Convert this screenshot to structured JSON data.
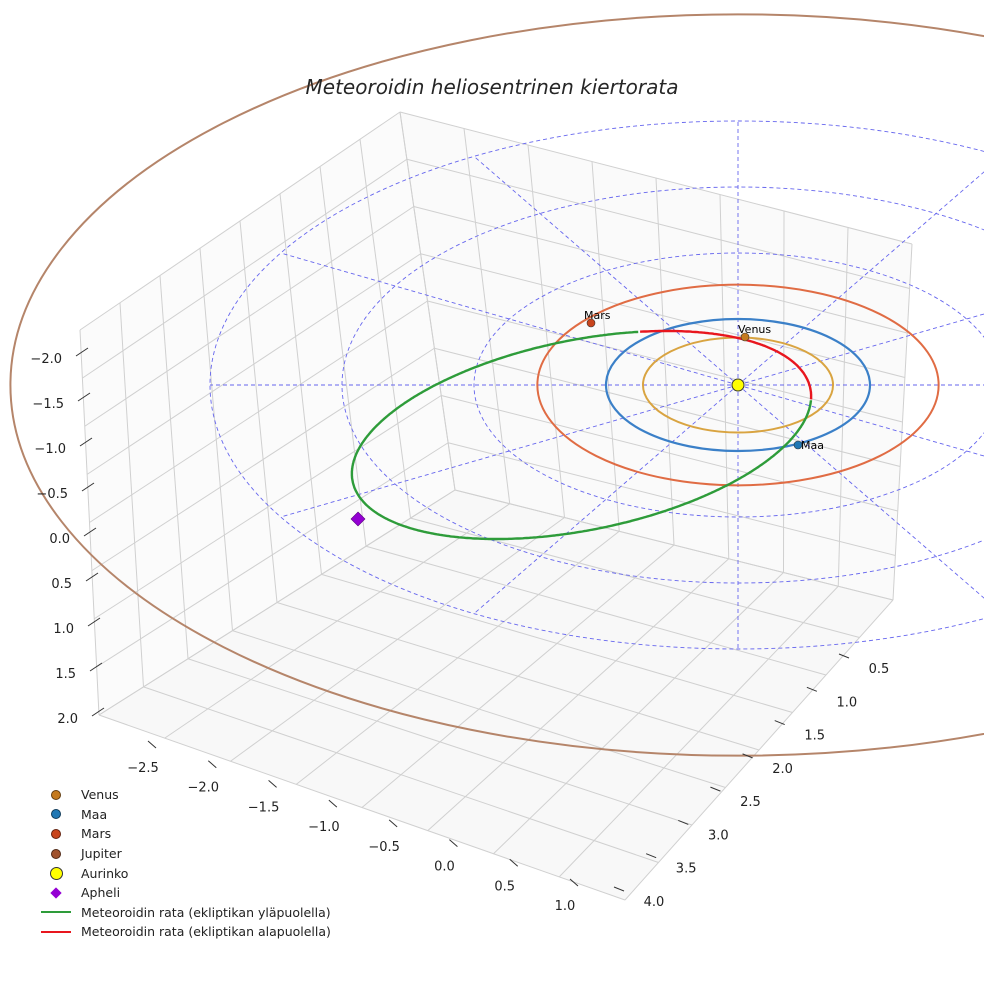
{
  "chart_data": {
    "type": "3d-orbit",
    "title": "Meteoroidin heliosentrinen kiertorata",
    "axes": {
      "x": {
        "range": [
          -2.9,
          1.2
        ],
        "ticks": [
          "−2.5",
          "−2.0",
          "−1.5",
          "−1.0",
          "−0.5",
          "0.0",
          "0.5",
          "1.0"
        ]
      },
      "y": {
        "range": [
          0.2,
          4.2
        ],
        "ticks": [
          "0.5",
          "1.0",
          "1.5",
          "2.0",
          "2.5",
          "3.0",
          "3.5",
          "4.0"
        ]
      },
      "z": {
        "range": [
          -2.2,
          2.2
        ],
        "ticks": [
          "−2.0",
          "−1.5",
          "−1.0",
          "−0.5",
          "0.0",
          "0.5",
          "1.0",
          "1.5",
          "2.0"
        ]
      }
    },
    "planets": [
      {
        "name": "Venus",
        "label": "Venus",
        "radius_au": 0.72,
        "color": "#d9a441",
        "dot_color": "#c57a1e"
      },
      {
        "name": "Maa",
        "label": "Maa",
        "radius_au": 1.0,
        "color": "#3b80c8",
        "dot_color": "#1f77b4"
      },
      {
        "name": "Mars",
        "label": "Mars",
        "radius_au": 1.52,
        "color": "#e06c44",
        "dot_color": "#c8441c"
      },
      {
        "name": "Jupiter",
        "label": "",
        "radius_au": 5.2,
        "color": "#b5856a",
        "dot_color": "#a0522d"
      }
    ],
    "sun": {
      "name": "Aurinko",
      "color": "#ffff00"
    },
    "aphelion": {
      "name": "Apheli",
      "color": "#9400d3"
    },
    "meteoroid_orbit": {
      "above_ecliptic": {
        "label": "Meteoroidin rata (ekliptikan yläpuolella)",
        "color": "#2e9c3a"
      },
      "below_ecliptic": {
        "label": "Meteoroidin rata (ekliptikan alapuolella)",
        "color": "#e8161e"
      }
    }
  },
  "legend": [
    {
      "kind": "dot",
      "label": "Venus",
      "color": "#c57a1e"
    },
    {
      "kind": "dot",
      "label": "Maa",
      "color": "#1f77b4"
    },
    {
      "kind": "dot",
      "label": "Mars",
      "color": "#c8441c"
    },
    {
      "kind": "dot",
      "label": "Jupiter",
      "color": "#a0522d"
    },
    {
      "kind": "bigdot",
      "label": "Aurinko",
      "color": "#ffff00"
    },
    {
      "kind": "diamond",
      "label": "Apheli",
      "color": "#9400d3"
    },
    {
      "kind": "line",
      "label": "Meteoroidin rata (ekliptikan yläpuolella)",
      "color": "#2e9c3a"
    },
    {
      "kind": "line",
      "label": "Meteoroidin rata (ekliptikan alapuolella)",
      "color": "#e8161e"
    }
  ]
}
